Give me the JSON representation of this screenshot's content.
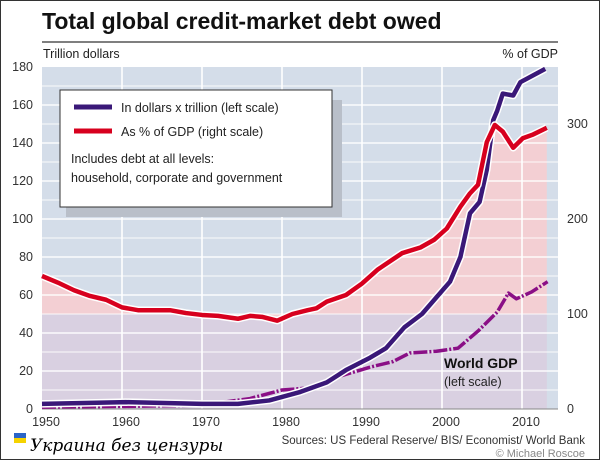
{
  "chart_data": {
    "type": "line",
    "title": "Total global credit-market debt owed",
    "ylabel_left": "Trillion dollars",
    "ylabel_right": "% of GDP",
    "xlim": [
      1950,
      2014.5
    ],
    "ylim_left": [
      0,
      180
    ],
    "ylim_right": [
      0,
      360
    ],
    "x_ticks": [
      "1950",
      "1960",
      "1970",
      "1980",
      "1990",
      "2000",
      "2010"
    ],
    "y_ticks_left": [
      "0",
      "20",
      "40",
      "60",
      "80",
      "100",
      "120",
      "140",
      "160",
      "180"
    ],
    "y_ticks_right": [
      "0",
      "100",
      "200",
      "300"
    ],
    "grid": true,
    "legend": {
      "placement": "top-left",
      "entries": [
        "In dollars x trillion (left scale)",
        "As % of GDP (right scale)"
      ],
      "note_line1": "Includes debt at all levels:",
      "note_line2": "household, corporate and government"
    },
    "annotation": {
      "title": "World GDP",
      "subtitle": "(left scale)"
    },
    "source": "Sources: US Federal Reserve/ BIS/ Economist/ World Bank",
    "credit": "© Michael Roscoe",
    "watermark": "Украина без цензуры",
    "colors": {
      "debt_dollars": "#3a1878",
      "debt_pct_gdp": "#d7001e",
      "world_gdp": "#8a0f86",
      "bg_blue": "#d4dde9",
      "fill_pink": "#f3cfd3",
      "fill_purple": "#d9d0e1"
    },
    "series": [
      {
        "name": "In dollars x trillion (left scale)",
        "axis": "left",
        "color": "#3a1878",
        "x": [
          1950,
          1960.5,
          1970,
          1974.5,
          1978.4,
          1982.3,
          1985.6,
          1988,
          1991,
          1993,
          1995.3,
          1997.5,
          2001,
          2002.3,
          2003.5,
          2004.7,
          2005.6,
          2006.4,
          2006.9,
          2007.6,
          2008.9,
          2009.8,
          2012.9
        ],
        "y": [
          2.7,
          3.6,
          2.7,
          2.7,
          4.5,
          9,
          14,
          20.5,
          27,
          32,
          43,
          50,
          67,
          80,
          103,
          109,
          126,
          152,
          157,
          166,
          165,
          172,
          179
        ]
      },
      {
        "name": "As % of GDP (right scale)",
        "axis": "right",
        "color": "#d7001e",
        "x": [
          1950,
          1952,
          1954,
          1956,
          1958,
          1960,
          1962,
          1966,
          1968,
          1970,
          1972,
          1974.5,
          1976,
          1977.5,
          1979.4,
          1981.3,
          1983.2,
          1984.3,
          1985.6,
          1988,
          1990,
          1992,
          1995,
          1997.3,
          1999,
          2000.6,
          2002.3,
          2003.5,
          2004.5,
          2005.6,
          2006.6,
          2007.6,
          2008.9,
          2010.1,
          2011.4,
          2013.1
        ],
        "y": [
          140,
          133,
          125,
          119,
          115,
          107,
          104,
          104,
          101,
          99,
          98,
          95,
          98,
          97,
          93,
          100,
          104,
          106,
          113,
          120,
          132,
          147,
          164,
          170,
          178,
          190,
          213,
          227,
          236,
          281,
          299,
          292,
          275,
          285,
          289,
          296
        ]
      },
      {
        "name": "World GDP",
        "axis": "left",
        "color": "#8a0f86",
        "x": [
          1950,
          1960.5,
          1970,
          1976,
          1980,
          1984.7,
          1987,
          1991,
          1993.9,
          1996,
          1999.3,
          2002,
          2004.5,
          2006.9,
          2008.3,
          2009.3,
          2011.2,
          2013.2
        ],
        "y": [
          1,
          1.4,
          2,
          5.5,
          10,
          11.5,
          17,
          22,
          25,
          29.5,
          30.4,
          32,
          41,
          51,
          61,
          58,
          61.6,
          67
        ]
      }
    ]
  }
}
